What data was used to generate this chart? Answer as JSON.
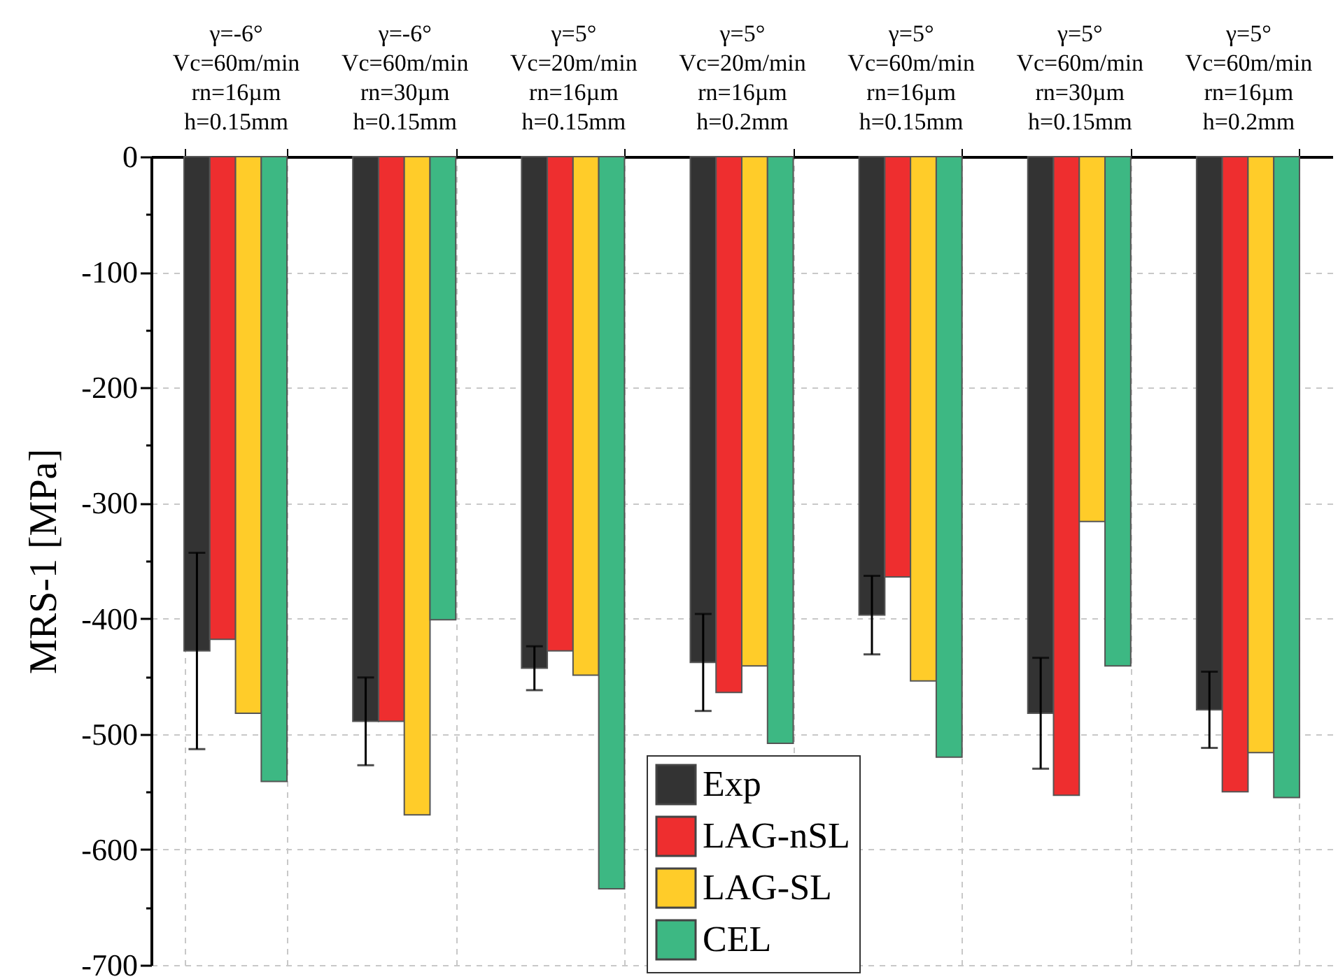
{
  "chart_data": {
    "type": "bar",
    "ylabel": "MRS-1 [MPa]",
    "categories": [
      "γ=-6°\nVc=60m/min\nrn=16µm\nh=0.15mm",
      "γ=-6°\nVc=60m/min\nrn=30µm\nh=0.15mm",
      "γ=5°\nVc=20m/min\nrn=16µm\nh=0.15mm",
      "γ=5°\nVc=20m/min\nrn=16µm\nh=0.2mm",
      "γ=5°\nVc=60m/min\nrn=16µm\nh=0.15mm",
      "γ=5°\nVc=60m/min\nrn=30µm\nh=0.15mm",
      "γ=5°\nVc=60m/min\nrn=16µm\nh=0.2mm"
    ],
    "series": [
      {
        "name": "Exp",
        "color": "#333333",
        "values": [
          -428,
          -489,
          -443,
          -438,
          -397,
          -482,
          -479
        ],
        "errors": [
          85,
          38,
          19,
          42,
          34,
          48,
          33
        ]
      },
      {
        "name": "LAG-nSL",
        "color": "#ee2e2f",
        "values": [
          -418,
          -489,
          -428,
          -464,
          -364,
          -553,
          -550
        ]
      },
      {
        "name": "LAG-SL",
        "color": "#ffcc29",
        "values": [
          -482,
          -570,
          -449,
          -441,
          -454,
          -316,
          -516
        ]
      },
      {
        "name": "CEL",
        "color": "#3db883",
        "values": [
          -541,
          -401,
          -634,
          -508,
          -520,
          -441,
          -555
        ]
      }
    ],
    "ylim": [
      -700,
      0
    ],
    "yticks": [
      0,
      {
        "value": -50,
        "label": null
      },
      -100,
      {
        "value": -150,
        "label": null
      },
      -200,
      {
        "value": -250,
        "label": null
      },
      -300,
      {
        "value": -350,
        "label": null
      },
      -400,
      {
        "value": -450,
        "label": null
      },
      -500,
      {
        "value": -550,
        "label": null
      },
      -600,
      {
        "value": -650,
        "label": null
      },
      -700
    ],
    "grid": true,
    "legend": "bottom"
  }
}
